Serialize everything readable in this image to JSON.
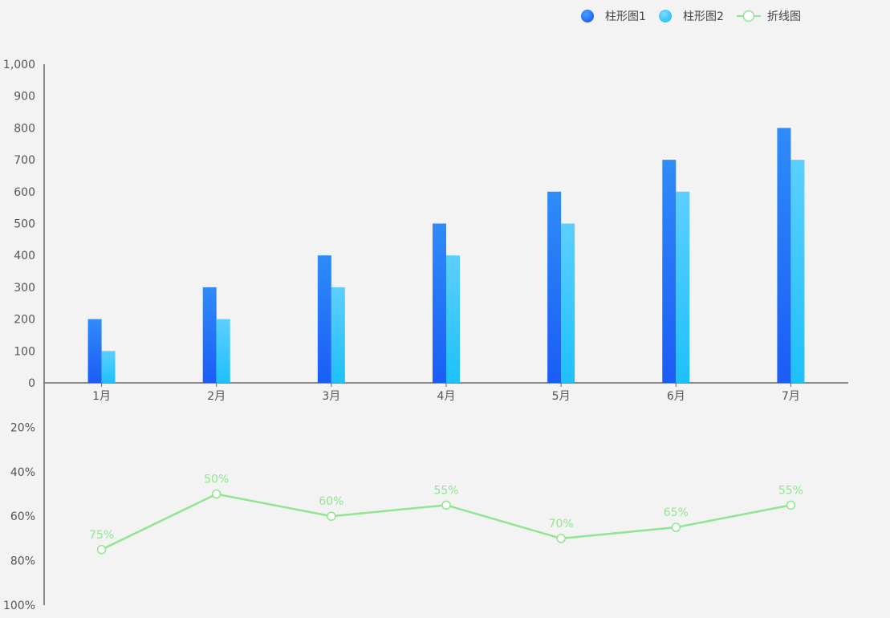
{
  "chart_data": {
    "type": "bar",
    "categories": [
      "1月",
      "2月",
      "3月",
      "4月",
      "5月",
      "6月",
      "7月"
    ],
    "series": [
      {
        "name": "柱形图1",
        "type": "bar",
        "values": [
          200,
          300,
          400,
          500,
          600,
          700,
          800
        ]
      },
      {
        "name": "柱形图2",
        "type": "bar",
        "values": [
          100,
          200,
          300,
          400,
          500,
          600,
          700
        ]
      },
      {
        "name": "折线图",
        "type": "line",
        "values": [
          75,
          50,
          60,
          55,
          70,
          65,
          55
        ],
        "unit": "%"
      }
    ],
    "bar_axis": {
      "ylim": [
        0,
        1000
      ],
      "ticks": [
        "0",
        "100",
        "200",
        "300",
        "400",
        "500",
        "600",
        "700",
        "800",
        "900",
        "1,000"
      ]
    },
    "line_axis": {
      "ylim": [
        0,
        100
      ],
      "inverted": true,
      "ticks": [
        "20%",
        "40%",
        "60%",
        "80%",
        "100%"
      ]
    },
    "legend_position": "top-right",
    "colors": {
      "bar1_top": "#2e8cf8",
      "bar1_bottom": "#1b5cf6",
      "bar2_top": "#5ccfff",
      "bar2_bottom": "#1ec0fb",
      "line": "#90e590",
      "axis": "#666666",
      "background": "#f3f3f3"
    }
  }
}
